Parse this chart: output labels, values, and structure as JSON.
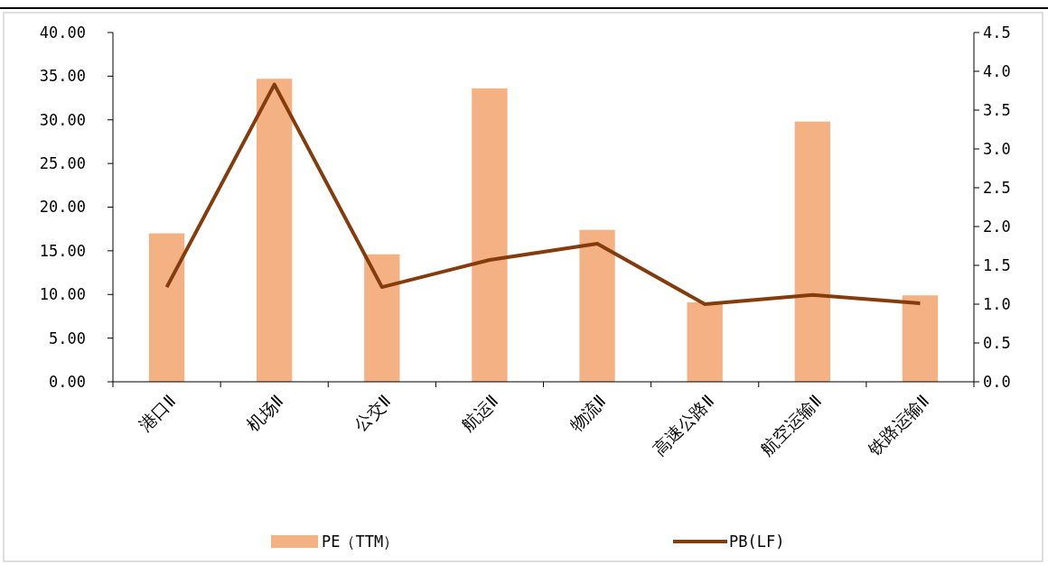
{
  "chart_data": {
    "type": "bar",
    "categories": [
      "港口Ⅱ",
      "机场Ⅱ",
      "公交Ⅱ",
      "航运Ⅱ",
      "物流Ⅱ",
      "高速公路Ⅱ",
      "航空运输Ⅱ",
      "铁路运输Ⅱ"
    ],
    "series": [
      {
        "name": "PE（TTM）",
        "color": "#f4b183",
        "values": [
          17.0,
          34.7,
          14.6,
          33.6,
          17.4,
          9.1,
          29.8,
          9.9
        ]
      },
      {
        "name": "PB(LF)",
        "type": "line",
        "axis": "y2",
        "color": "#843c0c",
        "values": [
          1.22,
          3.83,
          1.22,
          1.57,
          1.78,
          1.0,
          1.12,
          1.01
        ]
      }
    ],
    "ylim": [
      0,
      40
    ],
    "yticks": [
      {
        "value": 0,
        "label": "0.00"
      },
      {
        "value": 5,
        "label": "5.00"
      },
      {
        "value": 10,
        "label": "10.00"
      },
      {
        "value": 15,
        "label": "15.00"
      },
      {
        "value": 20,
        "label": "20.00"
      },
      {
        "value": 25,
        "label": "25.00"
      },
      {
        "value": 30,
        "label": "30.00"
      },
      {
        "value": 35,
        "label": "35.00"
      },
      {
        "value": 40,
        "label": "40.00"
      }
    ],
    "y2lim": [
      0,
      4.5
    ],
    "y2ticks": [
      {
        "value": 0,
        "label": "0.0"
      },
      {
        "value": 0.5,
        "label": "0.5"
      },
      {
        "value": 1,
        "label": "1.0"
      },
      {
        "value": 1.5,
        "label": "1.5"
      },
      {
        "value": 2,
        "label": "2.0"
      },
      {
        "value": 2.5,
        "label": "2.5"
      },
      {
        "value": 3,
        "label": "3.0"
      },
      {
        "value": 3.5,
        "label": "3.5"
      },
      {
        "value": 4,
        "label": "4.0"
      },
      {
        "value": 4.5,
        "label": "4.5"
      }
    ],
    "legend": "bottom",
    "marker": "none",
    "line_style": "solid"
  }
}
